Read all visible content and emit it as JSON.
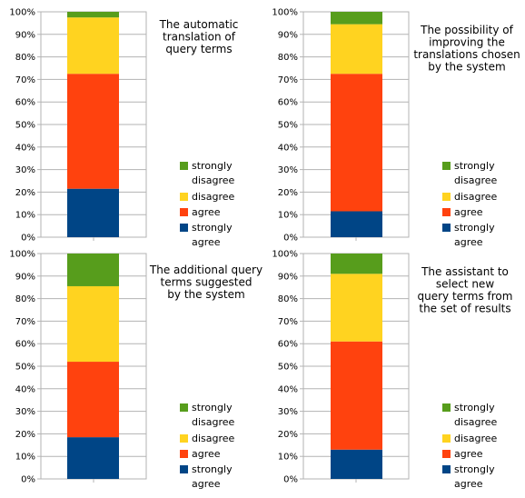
{
  "colors": {
    "strongly_agree": "#004586",
    "agree": "#ff420e",
    "disagree": "#ffd320",
    "strongly_disagree": "#579d1c",
    "grid": "#b3b3b3",
    "axis": "#b3b3b3"
  },
  "chart_data": [
    {
      "type": "bar",
      "stacked": true,
      "title_lines": [
        "The automatic",
        "translation of",
        "query terms"
      ],
      "yticks": [
        "0%",
        "10%",
        "20%",
        "30%",
        "40%",
        "50%",
        "60%",
        "70%",
        "80%",
        "90%",
        "100%"
      ],
      "ylim": [
        0,
        100
      ],
      "grid": true,
      "legend": "bottom-right",
      "series": [
        {
          "key": "strongly_agree",
          "name_lines": [
            "strongly",
            "agree"
          ],
          "value": 21.5
        },
        {
          "key": "agree",
          "name_lines": [
            "agree"
          ],
          "value": 51
        },
        {
          "key": "disagree",
          "name_lines": [
            "disagree"
          ],
          "value": 25
        },
        {
          "key": "strongly_disagree",
          "name_lines": [
            "strongly",
            "disagree"
          ],
          "value": 2.5
        }
      ]
    },
    {
      "type": "bar",
      "stacked": true,
      "title_lines": [
        "The possibility of",
        "improving the",
        "translations chosen",
        "by the system"
      ],
      "yticks": [
        "0%",
        "10%",
        "20%",
        "30%",
        "40%",
        "50%",
        "60%",
        "70%",
        "80%",
        "90%",
        "100%"
      ],
      "ylim": [
        0,
        100
      ],
      "grid": true,
      "legend": "bottom-right",
      "series": [
        {
          "key": "strongly_agree",
          "name_lines": [
            "strongly",
            "agree"
          ],
          "value": 11.5
        },
        {
          "key": "agree",
          "name_lines": [
            "agree"
          ],
          "value": 61
        },
        {
          "key": "disagree",
          "name_lines": [
            "disagree"
          ],
          "value": 22
        },
        {
          "key": "strongly_disagree",
          "name_lines": [
            "strongly",
            "disagree"
          ],
          "value": 5.5
        }
      ]
    },
    {
      "type": "bar",
      "stacked": true,
      "title_lines": [
        "The additional query",
        "terms suggested",
        "by the system"
      ],
      "yticks": [
        "0%",
        "10%",
        "20%",
        "30%",
        "40%",
        "50%",
        "60%",
        "70%",
        "80%",
        "90%",
        "100%"
      ],
      "ylim": [
        0,
        100
      ],
      "grid": true,
      "legend": "bottom-right",
      "series": [
        {
          "key": "strongly_agree",
          "name_lines": [
            "strongly",
            "agree"
          ],
          "value": 18.5
        },
        {
          "key": "agree",
          "name_lines": [
            "agree"
          ],
          "value": 33.5
        },
        {
          "key": "disagree",
          "name_lines": [
            "disagree"
          ],
          "value": 33.5
        },
        {
          "key": "strongly_disagree",
          "name_lines": [
            "strongly",
            "disagree"
          ],
          "value": 14.5
        }
      ]
    },
    {
      "type": "bar",
      "stacked": true,
      "title_lines": [
        "The assistant to",
        "select new",
        "query terms from",
        "the set of results"
      ],
      "yticks": [
        "0%",
        "10%",
        "20%",
        "30%",
        "40%",
        "50%",
        "60%",
        "70%",
        "80%",
        "90%",
        "100%"
      ],
      "ylim": [
        0,
        100
      ],
      "grid": true,
      "legend": "bottom-right",
      "series": [
        {
          "key": "strongly_agree",
          "name_lines": [
            "strongly",
            "agree"
          ],
          "value": 13
        },
        {
          "key": "agree",
          "name_lines": [
            "agree"
          ],
          "value": 48
        },
        {
          "key": "disagree",
          "name_lines": [
            "disagree"
          ],
          "value": 30
        },
        {
          "key": "strongly_disagree",
          "name_lines": [
            "strongly",
            "disagree"
          ],
          "value": 9
        }
      ]
    }
  ]
}
